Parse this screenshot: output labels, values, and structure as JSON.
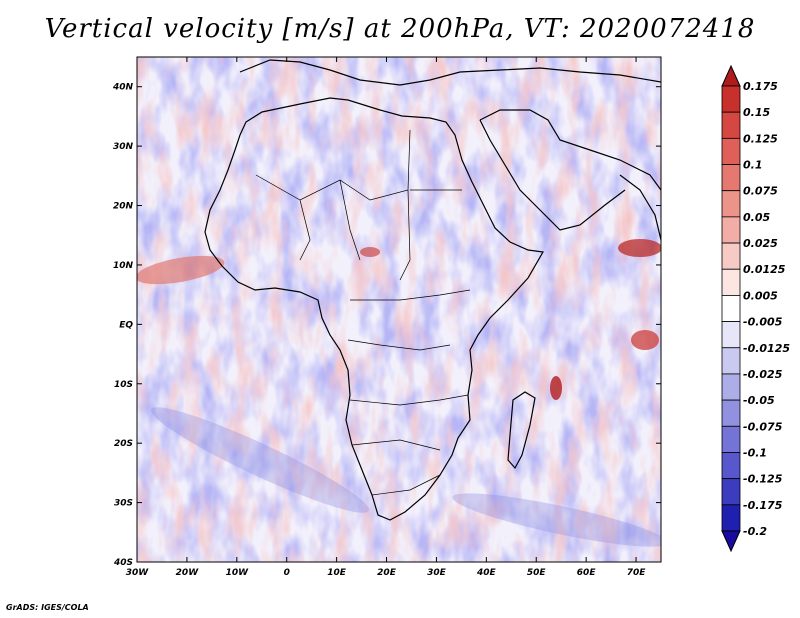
{
  "title": "Vertical velocity [m/s] at 200hPa, VT: 2020072418",
  "credit": "GrADS: IGES/COLA",
  "map": {
    "lon_range": [
      -30,
      75
    ],
    "lat_range": [
      -40,
      45
    ],
    "lon_ticks": [
      "30W",
      "20W",
      "10W",
      "0",
      "10E",
      "20E",
      "30E",
      "40E",
      "50E",
      "60E",
      "70E"
    ],
    "lon_tick_values": [
      -30,
      -20,
      -10,
      0,
      10,
      20,
      30,
      40,
      50,
      60,
      70
    ],
    "lat_ticks": [
      "40S",
      "30S",
      "20S",
      "10S",
      "EQ",
      "10N",
      "20N",
      "30N",
      "40N"
    ],
    "lat_tick_values": [
      -40,
      -30,
      -20,
      -10,
      0,
      10,
      20,
      30,
      40
    ]
  },
  "colorbar": {
    "labels": [
      "0.175",
      "0.15",
      "0.125",
      "0.1",
      "0.075",
      "0.05",
      "0.025",
      "0.0125",
      "0.005",
      "-0.005",
      "-0.0125",
      "-0.025",
      "-0.05",
      "-0.075",
      "-0.1",
      "-0.125",
      "-0.175",
      "-0.2"
    ],
    "colors": [
      "#b01b1b",
      "#c8302c",
      "#d54842",
      "#de6058",
      "#e5786f",
      "#ec938a",
      "#f2aea6",
      "#f7cbc5",
      "#fbe6e2",
      "#ffffff",
      "#e6e6f8",
      "#cacaf0",
      "#adade8",
      "#9191e0",
      "#7474d6",
      "#5858cc",
      "#3c3cbf",
      "#2020b0",
      "#1a0a9e"
    ]
  }
}
